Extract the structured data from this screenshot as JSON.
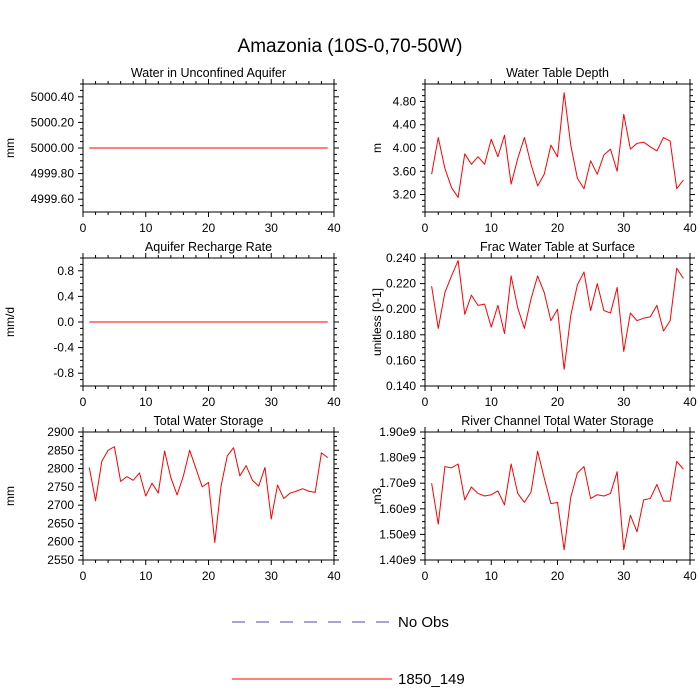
{
  "title": "Amazonia (10S-0,70-50W)",
  "legend": [
    {
      "label": "No Obs",
      "color": "#4a4ab0",
      "dash": true
    },
    {
      "label": "1850_149",
      "color": "#ff0000",
      "dash": false
    }
  ],
  "chart_data": [
    {
      "type": "line",
      "title": "Water in Unconfined Aquifer",
      "xlabel": "",
      "ylabel": "mm",
      "xlim": [
        0,
        40
      ],
      "ylim": [
        4999.5,
        5000.5
      ],
      "xticks": [
        0,
        10,
        20,
        30,
        40
      ],
      "xtick_labels": [
        "0",
        "10",
        "20",
        "30",
        "40"
      ],
      "yticks": [
        4999.6,
        4999.8,
        5000.0,
        5000.2,
        5000.4
      ],
      "ytick_labels": [
        "4999.60",
        "4999.80",
        "5000.00",
        "5000.20",
        "5000.40"
      ],
      "x": [
        1,
        39
      ],
      "series": [
        {
          "name": "1850_149",
          "color": "#ff0000",
          "values": [
            5000.0,
            5000.0
          ]
        }
      ]
    },
    {
      "type": "line",
      "title": "Water Table Depth",
      "xlabel": "",
      "ylabel": "m",
      "xlim": [
        0,
        40
      ],
      "ylim": [
        2.9,
        5.1
      ],
      "xticks": [
        0,
        10,
        20,
        30,
        40
      ],
      "xtick_labels": [
        "0",
        "10",
        "20",
        "30",
        "40"
      ],
      "yticks": [
        3.2,
        3.6,
        4.0,
        4.4,
        4.8
      ],
      "ytick_labels": [
        "3.20",
        "3.60",
        "4.00",
        "4.40",
        "4.80"
      ],
      "x": [
        1,
        2,
        3,
        4,
        5,
        6,
        7,
        8,
        9,
        10,
        11,
        12,
        13,
        14,
        15,
        16,
        17,
        18,
        19,
        20,
        21,
        22,
        23,
        24,
        25,
        26,
        27,
        28,
        29,
        30,
        31,
        32,
        33,
        34,
        35,
        36,
        37,
        38,
        39
      ],
      "series": [
        {
          "name": "1850_149",
          "color": "#ff0000",
          "values": [
            3.55,
            4.18,
            3.65,
            3.32,
            3.15,
            3.9,
            3.72,
            3.85,
            3.72,
            4.15,
            3.85,
            4.22,
            3.38,
            3.82,
            4.18,
            3.72,
            3.35,
            3.55,
            4.05,
            3.85,
            4.95,
            4.05,
            3.48,
            3.3,
            3.78,
            3.55,
            3.88,
            3.98,
            3.6,
            4.58,
            3.98,
            4.08,
            4.1,
            4.02,
            3.95,
            4.18,
            4.12,
            3.3,
            3.45
          ]
        }
      ]
    },
    {
      "type": "line",
      "title": "Aquifer Recharge Rate",
      "xlabel": "",
      "ylabel": "mm/d",
      "xlim": [
        0,
        40
      ],
      "ylim": [
        -1.0,
        1.0
      ],
      "xticks": [
        0,
        10,
        20,
        30,
        40
      ],
      "xtick_labels": [
        "0",
        "10",
        "20",
        "30",
        "40"
      ],
      "yticks": [
        -0.8,
        -0.4,
        0.0,
        0.4,
        0.8
      ],
      "ytick_labels": [
        "-0.8",
        "-0.4",
        "0.0",
        "0.4",
        "0.8"
      ],
      "x": [
        1,
        39
      ],
      "series": [
        {
          "name": "1850_149",
          "color": "#ff0000",
          "values": [
            0.0,
            0.0
          ]
        }
      ]
    },
    {
      "type": "line",
      "title": "Frac Water Table at Surface",
      "xlabel": "",
      "ylabel": "unitless [0-1]",
      "xlim": [
        0,
        40
      ],
      "ylim": [
        0.14,
        0.24
      ],
      "xticks": [
        0,
        10,
        20,
        30,
        40
      ],
      "xtick_labels": [
        "0",
        "10",
        "20",
        "30",
        "40"
      ],
      "yticks": [
        0.14,
        0.16,
        0.18,
        0.2,
        0.22,
        0.24
      ],
      "ytick_labels": [
        "0.140",
        "0.160",
        "0.180",
        "0.200",
        "0.220",
        "0.240"
      ],
      "x": [
        1,
        2,
        3,
        4,
        5,
        6,
        7,
        8,
        9,
        10,
        11,
        12,
        13,
        14,
        15,
        16,
        17,
        18,
        19,
        20,
        21,
        22,
        23,
        24,
        25,
        26,
        27,
        28,
        29,
        30,
        31,
        32,
        33,
        34,
        35,
        36,
        37,
        38,
        39
      ],
      "series": [
        {
          "name": "1850_149",
          "color": "#ff0000",
          "values": [
            0.218,
            0.185,
            0.213,
            0.226,
            0.238,
            0.196,
            0.211,
            0.203,
            0.204,
            0.186,
            0.203,
            0.181,
            0.226,
            0.201,
            0.185,
            0.208,
            0.226,
            0.213,
            0.191,
            0.2,
            0.153,
            0.195,
            0.219,
            0.229,
            0.199,
            0.22,
            0.199,
            0.197,
            0.217,
            0.167,
            0.197,
            0.191,
            0.193,
            0.194,
            0.203,
            0.183,
            0.191,
            0.232,
            0.224
          ]
        }
      ]
    },
    {
      "type": "line",
      "title": "Total Water Storage",
      "xlabel": "",
      "ylabel": "mm",
      "xlim": [
        0,
        40
      ],
      "ylim": [
        2550,
        2900
      ],
      "xticks": [
        0,
        10,
        20,
        30,
        40
      ],
      "xtick_labels": [
        "0",
        "10",
        "20",
        "30",
        "40"
      ],
      "yticks": [
        2550,
        2600,
        2650,
        2700,
        2750,
        2800,
        2850,
        2900
      ],
      "ytick_labels": [
        "2550",
        "2600",
        "2650",
        "2700",
        "2750",
        "2800",
        "2850",
        "2900"
      ],
      "x": [
        1,
        2,
        3,
        4,
        5,
        6,
        7,
        8,
        9,
        10,
        11,
        12,
        13,
        14,
        15,
        16,
        17,
        18,
        19,
        20,
        21,
        22,
        23,
        24,
        25,
        26,
        27,
        28,
        29,
        30,
        31,
        32,
        33,
        34,
        35,
        36,
        37,
        38,
        39
      ],
      "series": [
        {
          "name": "1850_149",
          "color": "#ff0000",
          "values": [
            2803,
            2712,
            2820,
            2850,
            2860,
            2765,
            2778,
            2768,
            2788,
            2725,
            2760,
            2733,
            2848,
            2775,
            2728,
            2780,
            2850,
            2800,
            2750,
            2762,
            2598,
            2752,
            2835,
            2857,
            2780,
            2808,
            2768,
            2752,
            2803,
            2662,
            2755,
            2718,
            2733,
            2738,
            2745,
            2738,
            2735,
            2843,
            2830
          ]
        }
      ]
    },
    {
      "type": "line",
      "title": "River Channel Total Water Storage",
      "xlabel": "",
      "ylabel": "m3",
      "xlim": [
        0,
        40
      ],
      "ylim": [
        1400000000.0,
        1900000000.0
      ],
      "xticks": [
        0,
        10,
        20,
        30,
        40
      ],
      "xtick_labels": [
        "0",
        "10",
        "20",
        "30",
        "40"
      ],
      "yticks": [
        1400000000.0,
        1500000000.0,
        1600000000.0,
        1700000000.0,
        1800000000.0,
        1900000000.0
      ],
      "ytick_labels": [
        "1.40e9",
        "1.50e9",
        "1.60e9",
        "1.70e9",
        "1.80e9",
        "1.90e9"
      ],
      "x": [
        1,
        2,
        3,
        4,
        5,
        6,
        7,
        8,
        9,
        10,
        11,
        12,
        13,
        14,
        15,
        16,
        17,
        18,
        19,
        20,
        21,
        22,
        23,
        24,
        25,
        26,
        27,
        28,
        29,
        30,
        31,
        32,
        33,
        34,
        35,
        36,
        37,
        38,
        39
      ],
      "series": [
        {
          "name": "1850_149",
          "color": "#ff0000",
          "values": [
            1700000000.0,
            1540000000.0,
            1765000000.0,
            1760000000.0,
            1775000000.0,
            1635000000.0,
            1685000000.0,
            1660000000.0,
            1650000000.0,
            1655000000.0,
            1670000000.0,
            1615000000.0,
            1775000000.0,
            1660000000.0,
            1625000000.0,
            1665000000.0,
            1825000000.0,
            1720000000.0,
            1620000000.0,
            1625000000.0,
            1440000000.0,
            1645000000.0,
            1740000000.0,
            1765000000.0,
            1640000000.0,
            1655000000.0,
            1650000000.0,
            1660000000.0,
            1745000000.0,
            1440000000.0,
            1575000000.0,
            1510000000.0,
            1635000000.0,
            1640000000.0,
            1695000000.0,
            1630000000.0,
            1630000000.0,
            1785000000.0,
            1755000000.0
          ]
        }
      ]
    }
  ]
}
